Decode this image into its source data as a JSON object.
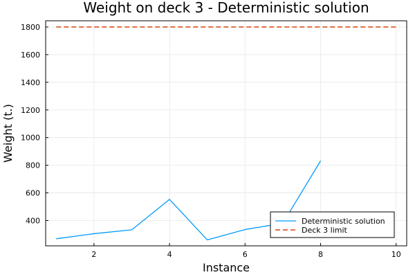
{
  "chart_data": {
    "type": "line",
    "title": "Weight on deck 3 - Deterministic solution",
    "xlabel": "Instance",
    "ylabel": "Weight (t.)",
    "xlim": [
      0.72,
      10.28
    ],
    "ylim": [
      217,
      1845
    ],
    "x_ticks": [
      2,
      4,
      6,
      8,
      10
    ],
    "y_ticks": [
      400,
      600,
      800,
      1000,
      1200,
      1400,
      1600,
      1800
    ],
    "grid": true,
    "legend_position": "bottom-right",
    "series": [
      {
        "name": "Deterministic solution",
        "color": "#009AFA",
        "style": "solid",
        "x": [
          1,
          2,
          3,
          4,
          5,
          6,
          7,
          8
        ],
        "y": [
          268,
          305,
          333,
          553,
          260,
          335,
          380,
          832
        ]
      },
      {
        "name": "Deck 3 limit",
        "color": "#E26F46",
        "style": "dashed",
        "x": [
          1,
          10
        ],
        "y": [
          1800,
          1800
        ]
      }
    ]
  }
}
